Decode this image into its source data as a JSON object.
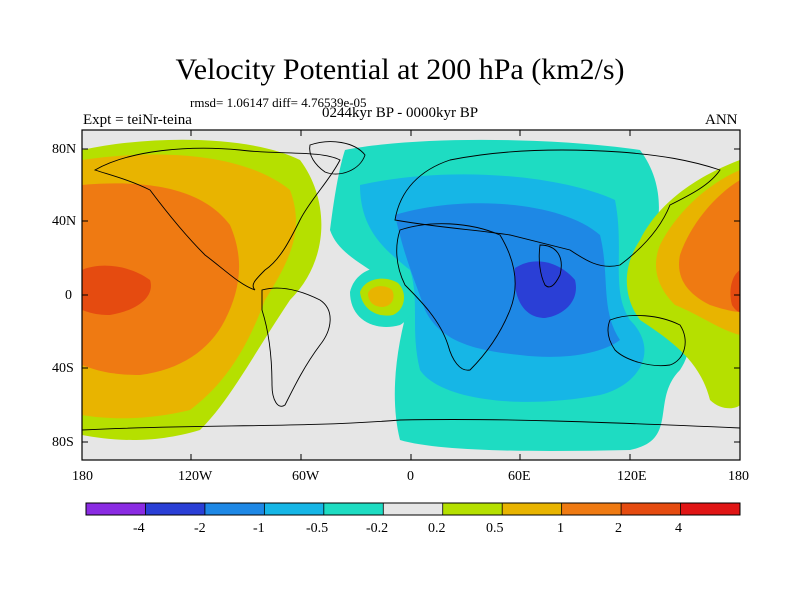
{
  "title": "Velocity Potential at 200 hPa (km2/s)",
  "stats": "rmsd= 1.06147 diff= 4.76539e-05",
  "experiment": "Expt = teiNr-teina",
  "period": "0244kyr BP - 0000kyr BP",
  "season": "ANN",
  "axes": {
    "x_ticks": [
      "180",
      "120W",
      "60W",
      "0",
      "60E",
      "120E",
      "180"
    ],
    "y_ticks": [
      "80N",
      "40N",
      "0",
      "40S",
      "80S"
    ]
  },
  "colorbar": {
    "labels": [
      "-4",
      "-2",
      "-1",
      "-0.5",
      "-0.2",
      "0.2",
      "0.5",
      "1",
      "2",
      "4"
    ],
    "colors": [
      "#8a2be2",
      "#2a3fd6",
      "#1e88e5",
      "#16b6e6",
      "#1edcc2",
      "#e6e6e6",
      "#b5e000",
      "#e8b400",
      "#ef7a12",
      "#e54b10",
      "#e01515"
    ]
  },
  "colors": {
    "neutral": "#e6e6e6",
    "pos_weak": "#b5e000",
    "pos_mid": "#e8b400",
    "pos_strong": "#ef7a12",
    "pos_stronger": "#e54b10",
    "neg_weak": "#1edcc2",
    "neg_mid": "#16b6e6",
    "neg_strong": "#1e88e5",
    "neg_stronger": "#2a3fd6"
  }
}
